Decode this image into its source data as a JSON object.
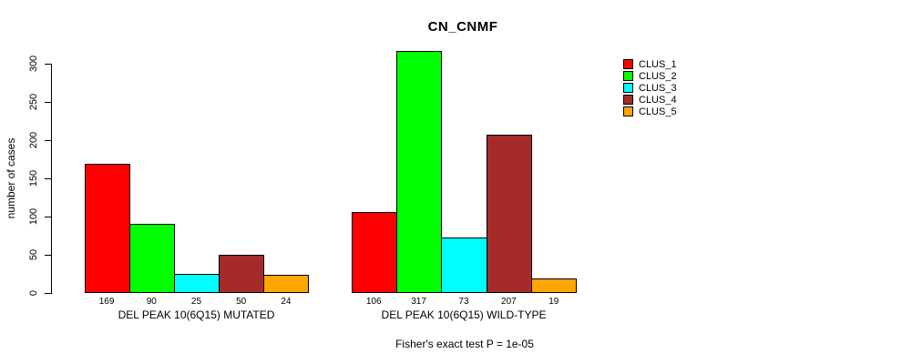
{
  "chart_data": {
    "type": "bar",
    "title": "CN_CNMF",
    "xlabel": "",
    "ylabel": "number of cases",
    "ylim": [
      0,
      300
    ],
    "yticks": [
      0,
      50,
      100,
      150,
      200,
      250,
      300
    ],
    "grid": false,
    "legend_position": "top-right",
    "bar_value_labels_shown": true,
    "categories": [
      "DEL PEAK 10(6Q15) MUTATED",
      "DEL PEAK 10(6Q15) WILD-TYPE"
    ],
    "series": [
      {
        "name": "CLUS_1",
        "color": "#FF0000",
        "values": [
          169,
          106
        ]
      },
      {
        "name": "CLUS_2",
        "color": "#00FF00",
        "values": [
          90,
          317
        ]
      },
      {
        "name": "CLUS_3",
        "color": "#00FFFF",
        "values": [
          25,
          73
        ]
      },
      {
        "name": "CLUS_4",
        "color": "#A52A2A",
        "values": [
          50,
          207
        ]
      },
      {
        "name": "CLUS_5",
        "color": "#FFA500",
        "values": [
          24,
          19
        ]
      }
    ],
    "annotation": "Fisher's exact test P = 1e-05"
  },
  "colors": {
    "axis": "#000000",
    "text": "#000000",
    "background": "#FFFFFF"
  }
}
